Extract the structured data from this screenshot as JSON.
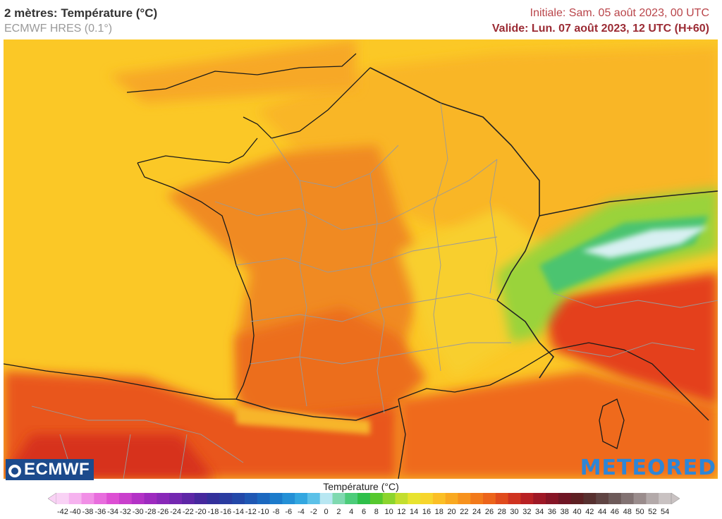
{
  "header": {
    "title": "2 mètres: Température (°C)",
    "model": "ECMWF HRES (0.1°)",
    "initial": "Initiale: Sam. 05 août 2023, 00 UTC",
    "valid": "Valide: Lun. 07 août 2023, 12 UTC (H+60)"
  },
  "logos": {
    "left": "ECMWF",
    "right": "METEORED"
  },
  "legend": {
    "title": "Température (°C)",
    "values": [
      -42,
      -40,
      -38,
      -36,
      -34,
      -32,
      -30,
      -28,
      -26,
      -24,
      -22,
      -20,
      -18,
      -16,
      -14,
      -12,
      -10,
      -8,
      -6,
      -4,
      -2,
      0,
      2,
      4,
      6,
      8,
      10,
      12,
      14,
      16,
      18,
      20,
      22,
      24,
      26,
      28,
      30,
      32,
      34,
      36,
      38,
      40,
      42,
      44,
      46,
      48,
      50,
      52,
      54
    ],
    "colors": [
      "#f9d2f5",
      "#f6b3ef",
      "#f18fe6",
      "#e86ddd",
      "#dd4fd3",
      "#c93fcc",
      "#b332c6",
      "#9d2abf",
      "#8828b8",
      "#7328b0",
      "#5d26a6",
      "#46289d",
      "#33309b",
      "#2a3ca0",
      "#2348a8",
      "#1f57b3",
      "#1b68bf",
      "#1c7bcb",
      "#2490d6",
      "#33a7e0",
      "#5cc1e8",
      "#b8e7f2",
      "#7fd9b0",
      "#4ccc7a",
      "#2ebf4a",
      "#56c82e",
      "#8cd42d",
      "#c3de2e",
      "#e8e32f",
      "#f7d52c",
      "#fbbf25",
      "#f9a920",
      "#f7921d",
      "#f27a1b",
      "#ec641b",
      "#e04b1d",
      "#cf3320",
      "#b82124",
      "#9e1826",
      "#861526",
      "#6f1625",
      "#5e2023",
      "#57302f",
      "#5f4443",
      "#6d5a59",
      "#827272",
      "#9a8c8c",
      "#b3a9a9",
      "#c9c2c2"
    ]
  },
  "map": {
    "region": "France",
    "colors": {
      "sea_warm": "#fbc826",
      "land_hot": "#f28c24",
      "land_very_hot": "#ea5a1f",
      "land_mild": "#f9c32a",
      "mountains_cool": "#8fd43d",
      "south_hot": "#e23c1c",
      "border_line": "#1a1a1a",
      "region_line": "#9a9a9a"
    }
  }
}
